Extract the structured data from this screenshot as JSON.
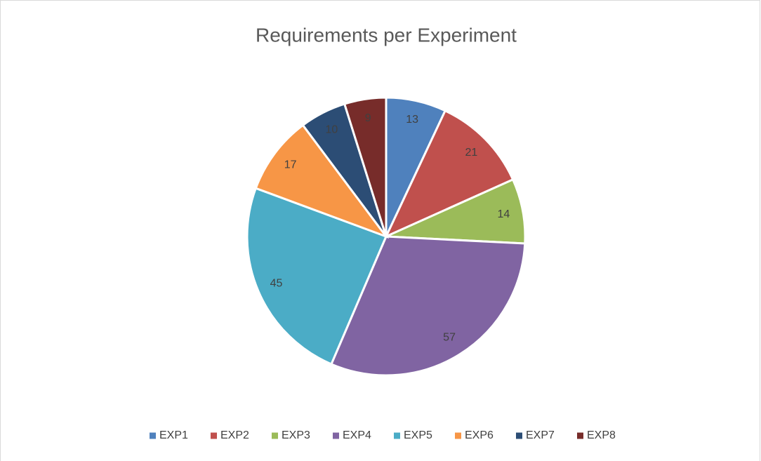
{
  "chart_data": {
    "type": "pie",
    "title": "Requirements per Experiment",
    "categories": [
      "EXP1",
      "EXP2",
      "EXP3",
      "EXP4",
      "EXP5",
      "EXP6",
      "EXP7",
      "EXP8"
    ],
    "values": [
      13,
      21,
      14,
      57,
      45,
      17,
      10,
      9
    ],
    "colors": [
      "#4f81bd",
      "#c0504d",
      "#9bbb59",
      "#8064a2",
      "#4bacc6",
      "#f79646",
      "#2c4d75",
      "#772c2a"
    ],
    "legend": "bottom"
  }
}
